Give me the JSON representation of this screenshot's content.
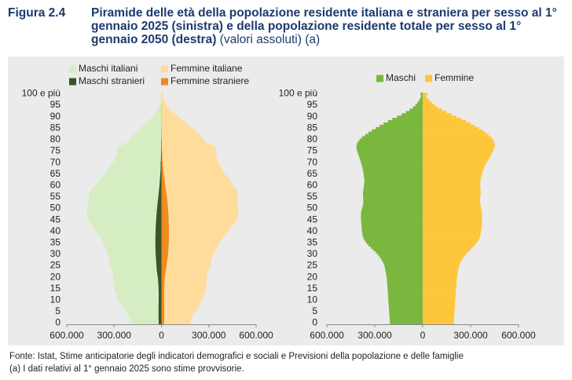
{
  "header": {
    "figure": "Figura 2.4",
    "title": "Piramide delle età della popolazione residente italiana e straniera per sesso al 1° gennaio 2025 (sinistra) e della popolazione residente totale per sesso al 1° gennaio 2050 (destra)",
    "note": "(valori assoluti) (a)"
  },
  "chart_data": [
    {
      "type": "pyramid",
      "categories": [
        "0",
        null,
        null,
        null,
        null,
        "5",
        null,
        null,
        null,
        null,
        "10",
        null,
        null,
        null,
        null,
        "15",
        null,
        null,
        null,
        null,
        "20",
        null,
        null,
        null,
        null,
        "25",
        null,
        null,
        null,
        null,
        "30",
        null,
        null,
        null,
        null,
        "35",
        null,
        null,
        null,
        null,
        "40",
        null,
        null,
        null,
        null,
        "45",
        null,
        null,
        null,
        null,
        "50",
        null,
        null,
        null,
        null,
        "55",
        null,
        null,
        null,
        null,
        "60",
        null,
        null,
        null,
        null,
        "65",
        null,
        null,
        null,
        null,
        "70",
        null,
        null,
        null,
        null,
        "75",
        null,
        null,
        null,
        null,
        "80",
        null,
        null,
        null,
        null,
        "85",
        null,
        null,
        null,
        null,
        "90",
        null,
        null,
        null,
        null,
        "95",
        null,
        null,
        null,
        null,
        "100 e più"
      ],
      "xlim": [
        -600000,
        600000
      ],
      "xticks": [
        {
          "value": -600000,
          "label": "600.000"
        },
        {
          "value": -300000,
          "label": "300.000"
        },
        0,
        {
          "value": 300000,
          "label": "300.000"
        },
        {
          "value": 600000,
          "label": "600.000"
        }
      ],
      "legend": "top",
      "series": [
        {
          "name": "Maschi italiani",
          "color": "#d6edc4",
          "values": [
            -172000,
            -177000,
            -181000,
            -191000,
            -196000,
            -206000,
            -216000,
            -226000,
            -236000,
            -247000,
            -252000,
            -262000,
            -267000,
            -272000,
            -277000,
            -281000,
            -281000,
            -280000,
            -284000,
            -283000,
            -281000,
            -279000,
            -282000,
            -285000,
            -289000,
            -293000,
            -297000,
            -296000,
            -295000,
            -299000,
            -303000,
            -307000,
            -312000,
            -316000,
            -326000,
            -331000,
            -336000,
            -346000,
            -356000,
            -367000,
            -377000,
            -388000,
            -398000,
            -409000,
            -420000,
            -431000,
            -437000,
            -443000,
            -444000,
            -440000,
            -442000,
            -443000,
            -440000,
            -441000,
            -438000,
            -439000,
            -441000,
            -437000,
            -429000,
            -420000,
            -407000,
            -398000,
            -389000,
            -380000,
            -366000,
            -352000,
            -343000,
            -334000,
            -324000,
            -315000,
            -305000,
            -296000,
            -291000,
            -287000,
            -282000,
            -277000,
            -278000,
            -268000,
            -243000,
            -213000,
            -198000,
            -189000,
            -174000,
            -159000,
            -144000,
            -129000,
            -114000,
            -99000,
            -84000,
            -69000,
            -56000,
            -44000,
            -34000,
            -26000,
            -19000,
            -13000,
            -10000,
            -7000,
            -5000,
            -3000,
            -3000
          ]
        },
        {
          "name": "Femmine italiane",
          "color": "#ffdc9a",
          "values": [
            163000,
            168000,
            172000,
            180000,
            186000,
            195000,
            204000,
            214000,
            223000,
            233000,
            239000,
            247000,
            253000,
            258000,
            263000,
            265000,
            265000,
            265000,
            267000,
            266000,
            265000,
            264000,
            266000,
            269000,
            272000,
            276000,
            279000,
            279000,
            280000,
            283000,
            288000,
            293000,
            299000,
            305000,
            316000,
            321000,
            328000,
            338000,
            349000,
            362000,
            374000,
            385000,
            396000,
            407000,
            419000,
            429000,
            436000,
            441000,
            443000,
            441000,
            443000,
            445000,
            443000,
            446000,
            445000,
            449000,
            454000,
            453000,
            447000,
            440000,
            428000,
            421000,
            415000,
            409000,
            397000,
            386000,
            379000,
            372000,
            366000,
            359000,
            352000,
            346000,
            344000,
            343000,
            340000,
            338000,
            341000,
            334000,
            308000,
            277000,
            266000,
            257000,
            243000,
            228000,
            213000,
            197000,
            180000,
            162000,
            144000,
            124000,
            106000,
            87000,
            70000,
            55000,
            42000,
            31000,
            23000,
            16000,
            11000,
            7000,
            12000
          ]
        },
        {
          "name": "Maschi stranieri",
          "color": "#375623",
          "values": [
            -18000,
            -18000,
            -19000,
            -19000,
            -19000,
            -19000,
            -19000,
            -19000,
            -19000,
            -18000,
            -18000,
            -18000,
            -18000,
            -18000,
            -18000,
            -19000,
            -19000,
            -20000,
            -21000,
            -22000,
            -24000,
            -26000,
            -28000,
            -30000,
            -31000,
            -32000,
            -33000,
            -34000,
            -35000,
            -36000,
            -37000,
            -38000,
            -38000,
            -39000,
            -39000,
            -39000,
            -39000,
            -39000,
            -39000,
            -38000,
            -38000,
            -37000,
            -37000,
            -36000,
            -35000,
            -34000,
            -33000,
            -32000,
            -31000,
            -30000,
            -28000,
            -27000,
            -25000,
            -24000,
            -22000,
            -21000,
            -19000,
            -18000,
            -16000,
            -15000,
            -13000,
            -12000,
            -11000,
            -10000,
            -9000,
            -8000,
            -7000,
            -6000,
            -6000,
            -5000,
            -5000,
            -4000,
            -4000,
            -3000,
            -3000,
            -3000,
            -2000,
            -2000,
            -2000,
            -2000,
            -2000,
            -1000,
            -1000,
            -1000,
            -1000,
            -1000,
            -1000,
            -1000,
            -1000,
            -1000,
            -1000,
            -1000,
            -1000,
            -1000,
            -1000,
            -1000,
            0,
            0,
            0,
            0,
            0
          ]
        },
        {
          "name": "Femmine straniere",
          "color": "#f08a1d",
          "values": [
            17000,
            17000,
            18000,
            18000,
            18000,
            18000,
            18000,
            18000,
            18000,
            17000,
            17000,
            17000,
            17000,
            17000,
            17000,
            18000,
            18000,
            18000,
            19000,
            20000,
            22000,
            24000,
            26000,
            28000,
            30000,
            32000,
            34000,
            36000,
            38000,
            40000,
            42000,
            43000,
            44000,
            45000,
            46000,
            47000,
            47000,
            48000,
            48000,
            48000,
            48000,
            48000,
            47000,
            47000,
            46000,
            46000,
            45000,
            45000,
            44000,
            43000,
            42000,
            41000,
            40000,
            38000,
            37000,
            35000,
            33000,
            31000,
            29000,
            27000,
            25000,
            23000,
            21000,
            19000,
            17000,
            15000,
            13000,
            12000,
            10000,
            9000,
            8000,
            7000,
            6000,
            5000,
            5000,
            4000,
            4000,
            3000,
            3000,
            3000,
            2000,
            2000,
            2000,
            2000,
            2000,
            1000,
            1000,
            1000,
            1000,
            1000,
            1000,
            1000,
            1000,
            1000,
            1000,
            1000,
            0,
            0,
            0,
            0,
            0
          ]
        }
      ]
    },
    {
      "type": "pyramid",
      "categories": [
        "0",
        null,
        null,
        null,
        null,
        "5",
        null,
        null,
        null,
        null,
        "10",
        null,
        null,
        null,
        null,
        "15",
        null,
        null,
        null,
        null,
        "20",
        null,
        null,
        null,
        null,
        "25",
        null,
        null,
        null,
        null,
        "30",
        null,
        null,
        null,
        null,
        "35",
        null,
        null,
        null,
        null,
        "40",
        null,
        null,
        null,
        null,
        "45",
        null,
        null,
        null,
        null,
        "50",
        null,
        null,
        null,
        null,
        "55",
        null,
        null,
        null,
        null,
        "60",
        null,
        null,
        null,
        null,
        "65",
        null,
        null,
        null,
        null,
        "70",
        null,
        null,
        null,
        null,
        "75",
        null,
        null,
        null,
        null,
        "80",
        null,
        null,
        null,
        null,
        "85",
        null,
        null,
        null,
        null,
        "90",
        null,
        null,
        null,
        null,
        "95",
        null,
        null,
        null,
        null,
        "100 e più"
      ],
      "xlim": [
        -600000,
        600000
      ],
      "xticks": [
        {
          "value": -600000,
          "label": "600.000"
        },
        {
          "value": -300000,
          "label": "300.000"
        },
        0,
        {
          "value": 300000,
          "label": "300.000"
        },
        {
          "value": 600000,
          "label": "600.000"
        }
      ],
      "legend": "top",
      "series": [
        {
          "name": "Maschi",
          "color": "#7ab73e",
          "values": [
            -205000,
            -206000,
            -207000,
            -208000,
            -209000,
            -210000,
            -211000,
            -212000,
            -213000,
            -214000,
            -215000,
            -216000,
            -217000,
            -218000,
            -219000,
            -220000,
            -221000,
            -222000,
            -223000,
            -224000,
            -226000,
            -228000,
            -230000,
            -233000,
            -236000,
            -240000,
            -245000,
            -252000,
            -260000,
            -270000,
            -282000,
            -295000,
            -310000,
            -325000,
            -340000,
            -352000,
            -362000,
            -370000,
            -375000,
            -378000,
            -380000,
            -382000,
            -383000,
            -384000,
            -385000,
            -386000,
            -387000,
            -387000,
            -386000,
            -384000,
            -380000,
            -376000,
            -373000,
            -372000,
            -372000,
            -373000,
            -374000,
            -374000,
            -372000,
            -370000,
            -368000,
            -366000,
            -365000,
            -366000,
            -368000,
            -370000,
            -372000,
            -375000,
            -378000,
            -382000,
            -386000,
            -390000,
            -395000,
            -400000,
            -405000,
            -410000,
            -413000,
            -415000,
            -412000,
            -405000,
            -395000,
            -380000,
            -360000,
            -340000,
            -318000,
            -295000,
            -270000,
            -245000,
            -218000,
            -190000,
            -160000,
            -132000,
            -105000,
            -82000,
            -62000,
            -46000,
            -34000,
            -24000,
            -16000,
            -10000,
            -14000
          ]
        },
        {
          "name": "Femmine",
          "color": "#fec63a",
          "values": [
            194000,
            195000,
            196000,
            197000,
            198000,
            199000,
            200000,
            201000,
            202000,
            203000,
            204000,
            205000,
            206000,
            207000,
            208000,
            209000,
            210000,
            211000,
            212000,
            213000,
            215000,
            217000,
            219000,
            221000,
            224000,
            228000,
            233000,
            240000,
            248000,
            258000,
            270000,
            283000,
            297000,
            311000,
            325000,
            337000,
            347000,
            355000,
            360000,
            363000,
            365000,
            367000,
            368000,
            369000,
            370000,
            371000,
            372000,
            372000,
            371000,
            369000,
            366000,
            363000,
            360000,
            359000,
            359000,
            360000,
            362000,
            363000,
            362000,
            361000,
            360000,
            360000,
            361000,
            363000,
            366000,
            370000,
            374000,
            379000,
            385000,
            392000,
            400000,
            408000,
            416000,
            424000,
            432000,
            440000,
            446000,
            450000,
            452000,
            448000,
            440000,
            428000,
            412000,
            395000,
            375000,
            352000,
            327000,
            300000,
            272000,
            242000,
            210000,
            180000,
            150000,
            122000,
            97000,
            76000,
            58000,
            43000,
            31000,
            22000,
            30000
          ]
        }
      ]
    }
  ],
  "footer": {
    "source": "Fonte: Istat, Stime anticipatorie degli indicatori demografici e sociali e Previsioni della popolazione e delle famiglie",
    "note": "(a) I dati relativi al 1° gennaio 2025 sono stime provvisorie."
  }
}
